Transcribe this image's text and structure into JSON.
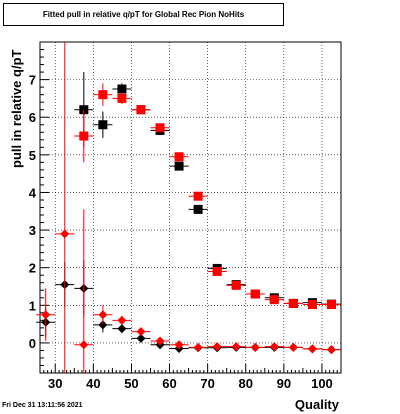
{
  "chart_data": {
    "type": "scatter",
    "title": "Fitted pull in relative q/pT for Global Rec Pion NoHits",
    "xlabel": "Quality",
    "ylabel": "pull in relative q/pT",
    "xlim": [
      26,
      105
    ],
    "ylim": [
      -0.8,
      8.0
    ],
    "x_ticks": [
      30,
      40,
      50,
      60,
      70,
      80,
      90,
      100
    ],
    "y_ticks": [
      0,
      1,
      2,
      3,
      4,
      5,
      6,
      7
    ],
    "grid": true,
    "legend": "none",
    "timestamp": "Fri Dec 31 13:11:56 2021",
    "series": [
      {
        "marker": "square",
        "color": "#000000",
        "points": [
          {
            "x": 37.5,
            "y": 6.2,
            "yerr": 1.0
          },
          {
            "x": 42.5,
            "y": 5.8,
            "yerr": 0.35
          },
          {
            "x": 47.5,
            "y": 6.75,
            "yerr": 0.15
          },
          {
            "x": 52.5,
            "y": 6.2,
            "yerr": 0.1
          },
          {
            "x": 57.5,
            "y": 5.65,
            "yerr": 0.08
          },
          {
            "x": 62.5,
            "y": 4.7,
            "yerr": 0.08
          },
          {
            "x": 67.5,
            "y": 3.55,
            "yerr": 0.06
          },
          {
            "x": 72.5,
            "y": 1.98,
            "yerr": 0.05
          },
          {
            "x": 77.5,
            "y": 1.55,
            "yerr": 0.04
          },
          {
            "x": 82.5,
            "y": 1.3,
            "yerr": 0.04
          },
          {
            "x": 87.5,
            "y": 1.2,
            "yerr": 0.04
          },
          {
            "x": 92.5,
            "y": 1.05,
            "yerr": 0.03
          },
          {
            "x": 97.5,
            "y": 1.07,
            "yerr": 0.03
          },
          {
            "x": 102.5,
            "y": 1.03,
            "yerr": 0.03
          }
        ]
      },
      {
        "marker": "square",
        "color": "#ff0000",
        "points": [
          {
            "x": 37.5,
            "y": 5.5,
            "yerr": 0.7
          },
          {
            "x": 42.5,
            "y": 6.6,
            "yerr": 0.3
          },
          {
            "x": 47.5,
            "y": 6.5,
            "yerr": 0.15
          },
          {
            "x": 52.5,
            "y": 6.2,
            "yerr": 0.1
          },
          {
            "x": 57.5,
            "y": 5.72,
            "yerr": 0.07
          },
          {
            "x": 62.5,
            "y": 4.95,
            "yerr": 0.06
          },
          {
            "x": 67.5,
            "y": 3.9,
            "yerr": 0.05
          },
          {
            "x": 72.5,
            "y": 1.9,
            "yerr": 0.04
          },
          {
            "x": 77.5,
            "y": 1.53,
            "yerr": 0.04
          },
          {
            "x": 82.5,
            "y": 1.3,
            "yerr": 0.03
          },
          {
            "x": 87.5,
            "y": 1.15,
            "yerr": 0.03
          },
          {
            "x": 92.5,
            "y": 1.05,
            "yerr": 0.03
          },
          {
            "x": 97.5,
            "y": 1.02,
            "yerr": 0.03
          },
          {
            "x": 102.5,
            "y": 1.02,
            "yerr": 0.03
          }
        ]
      },
      {
        "marker": "diamond",
        "color": "#000000",
        "points": [
          {
            "x": 27.5,
            "y": 0.55,
            "yerr": 0.4
          },
          {
            "x": 32.5,
            "y": 1.55,
            "yerr": 0.6
          },
          {
            "x": 37.5,
            "y": 1.45,
            "yerr": 0.75
          },
          {
            "x": 42.5,
            "y": 0.48,
            "yerr": 0.2
          },
          {
            "x": 47.5,
            "y": 0.38,
            "yerr": 0.12
          },
          {
            "x": 52.5,
            "y": 0.12,
            "yerr": 0.07
          },
          {
            "x": 57.5,
            "y": -0.05,
            "yerr": 0.05
          },
          {
            "x": 62.5,
            "y": -0.15,
            "yerr": 0.04
          },
          {
            "x": 67.5,
            "y": -0.13,
            "yerr": 0.03
          },
          {
            "x": 72.5,
            "y": -0.13,
            "yerr": 0.03
          },
          {
            "x": 77.5,
            "y": -0.12,
            "yerr": 0.03
          },
          {
            "x": 82.5,
            "y": -0.12,
            "yerr": 0.03
          },
          {
            "x": 87.5,
            "y": -0.12,
            "yerr": 0.03
          },
          {
            "x": 92.5,
            "y": -0.12,
            "yerr": 0.03
          },
          {
            "x": 97.5,
            "y": -0.16,
            "yerr": 0.03
          },
          {
            "x": 102.5,
            "y": -0.18,
            "yerr": 0.03
          }
        ]
      },
      {
        "marker": "diamond",
        "color": "#ff0000",
        "points": [
          {
            "x": 27.5,
            "y": 0.75,
            "yerr": 0.7
          },
          {
            "x": 32.5,
            "y": 2.9,
            "yerr": 8.0
          },
          {
            "x": 37.5,
            "y": -0.05,
            "yerr": 3.6
          },
          {
            "x": 42.5,
            "y": 0.75,
            "yerr": 0.25
          },
          {
            "x": 47.5,
            "y": 0.6,
            "yerr": 0.12
          },
          {
            "x": 52.5,
            "y": 0.3,
            "yerr": 0.07
          },
          {
            "x": 57.5,
            "y": 0.05,
            "yerr": 0.05
          },
          {
            "x": 62.5,
            "y": -0.05,
            "yerr": 0.04
          },
          {
            "x": 67.5,
            "y": -0.12,
            "yerr": 0.03
          },
          {
            "x": 72.5,
            "y": -0.1,
            "yerr": 0.03
          },
          {
            "x": 77.5,
            "y": -0.1,
            "yerr": 0.03
          },
          {
            "x": 82.5,
            "y": -0.12,
            "yerr": 0.03
          },
          {
            "x": 87.5,
            "y": -0.1,
            "yerr": 0.03
          },
          {
            "x": 92.5,
            "y": -0.12,
            "yerr": 0.03
          },
          {
            "x": 97.5,
            "y": -0.16,
            "yerr": 0.03
          },
          {
            "x": 102.5,
            "y": -0.18,
            "yerr": 0.03
          }
        ]
      }
    ]
  }
}
